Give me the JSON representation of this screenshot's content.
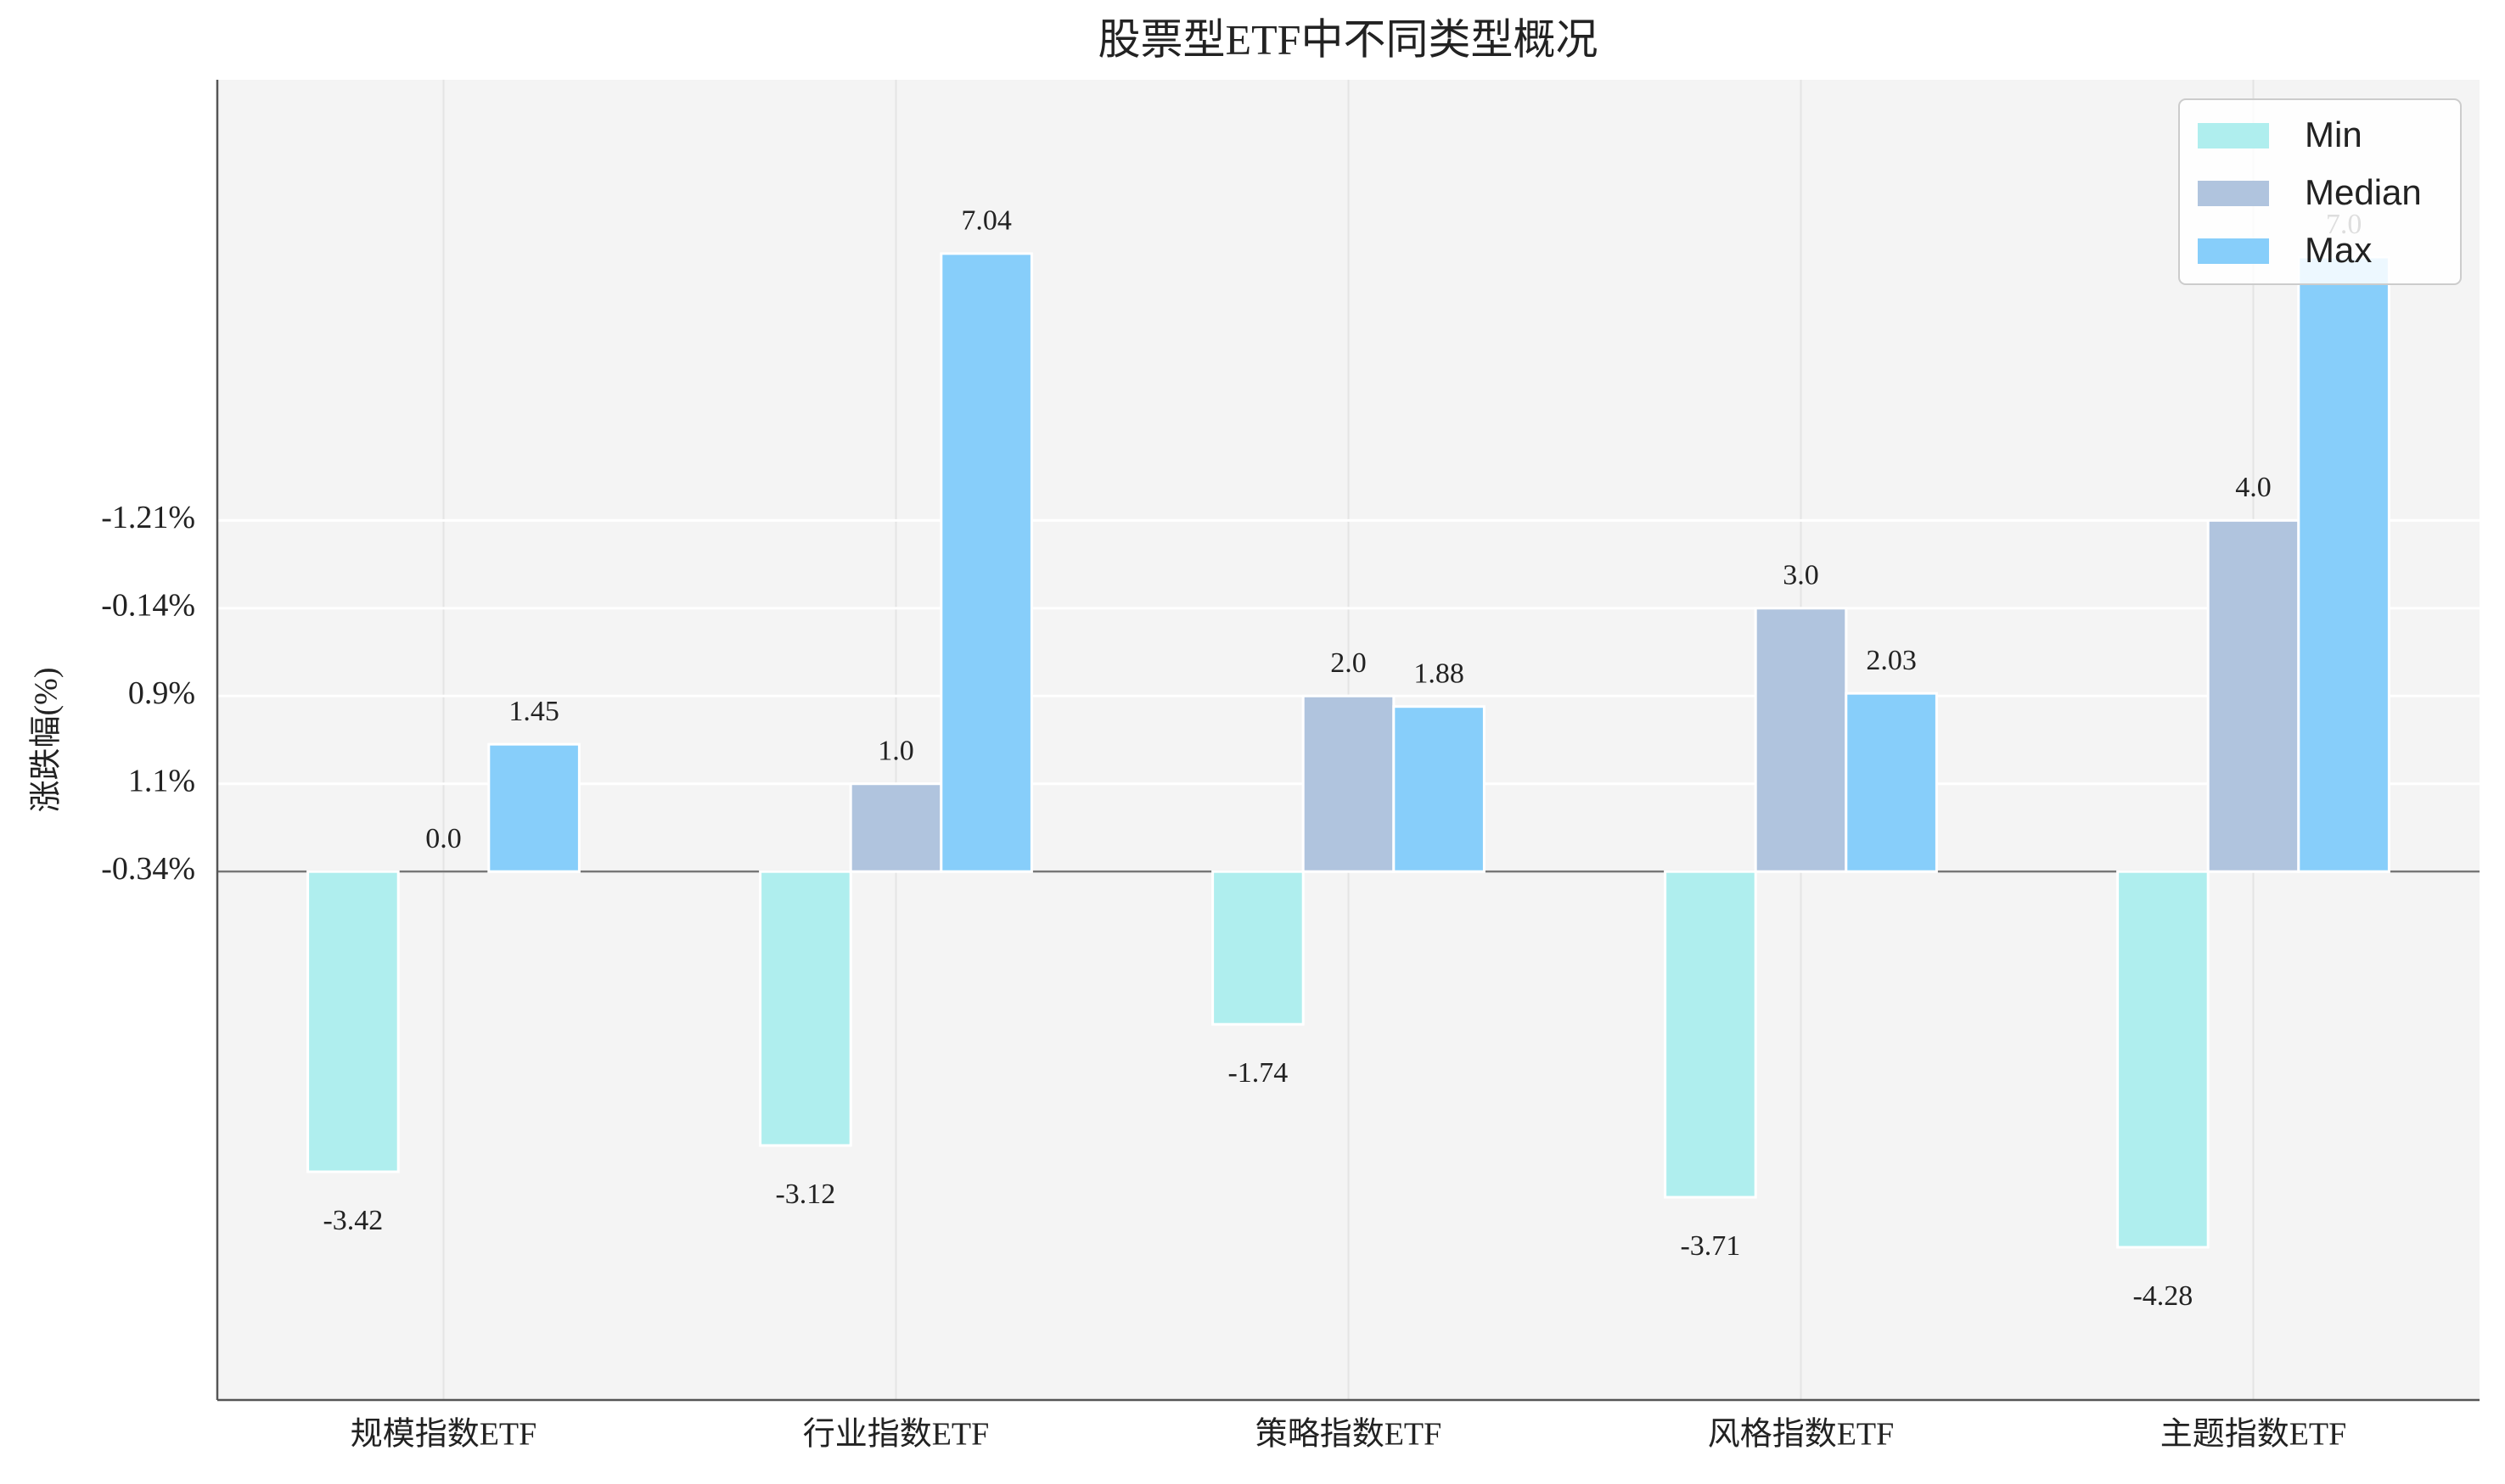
{
  "chart_data": {
    "type": "bar",
    "title": "股票型ETF中不同类型概况",
    "ylabel": "涨跌幅(%)",
    "categories": [
      "规模指数ETF",
      "行业指数ETF",
      "策略指数ETF",
      "风格指数ETF",
      "主题指数ETF"
    ],
    "series": [
      {
        "name": "Min",
        "color": "#afeeee",
        "values": [
          -3.42,
          -3.12,
          -1.74,
          -3.71,
          -4.28
        ],
        "value_labels": [
          "-3.42",
          "-3.12",
          "-1.74",
          "-3.71",
          "-4.28"
        ]
      },
      {
        "name": "Median",
        "color": "#b0c4de",
        "values": [
          0.0,
          1.0,
          2.0,
          3.0,
          4.0
        ],
        "value_labels": [
          "0.0",
          "1.0",
          "2.0",
          "3.0",
          "4.0"
        ]
      },
      {
        "name": "Max",
        "color": "#87cefa",
        "values": [
          1.45,
          7.04,
          1.88,
          2.03,
          7.0
        ],
        "value_labels": [
          "1.45",
          "7.04",
          "1.88",
          "2.03",
          "7.0"
        ]
      }
    ],
    "ylim": [
      -6.02,
      9.02
    ],
    "yticks": [
      {
        "value": 0,
        "label": "-0.34%"
      },
      {
        "value": 1,
        "label": "1.1%"
      },
      {
        "value": 2,
        "label": "0.9%"
      },
      {
        "value": 3,
        "label": "-0.14%"
      },
      {
        "value": 4,
        "label": "-1.21%"
      }
    ],
    "grid": true,
    "legend": "upper right"
  }
}
